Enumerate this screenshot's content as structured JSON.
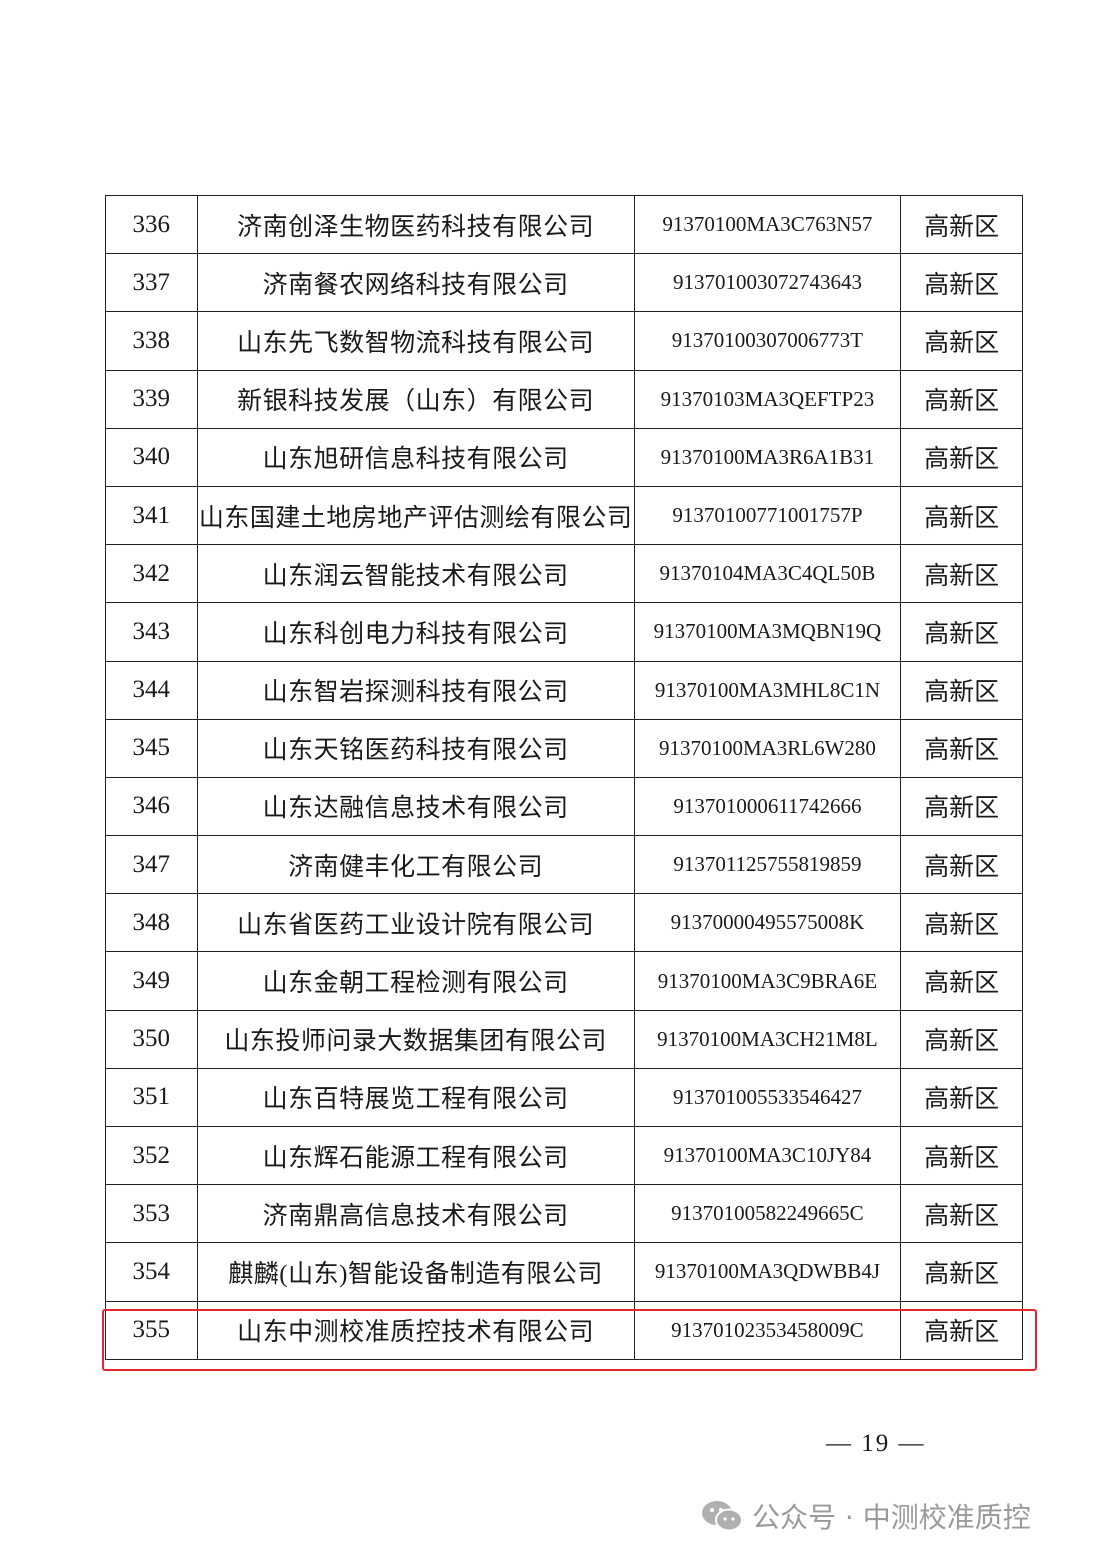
{
  "table": {
    "rows": [
      {
        "no": "336",
        "name": "济南创泽生物医药科技有限公司",
        "code": "91370100MA3C763N57",
        "area": "高新区"
      },
      {
        "no": "337",
        "name": "济南餐农网络科技有限公司",
        "code": "913701003072743643",
        "area": "高新区"
      },
      {
        "no": "338",
        "name": "山东先飞数智物流科技有限公司",
        "code": "91370100307006773T",
        "area": "高新区"
      },
      {
        "no": "339",
        "name": "新银科技发展（山东）有限公司",
        "code": "91370103MA3QEFTP23",
        "area": "高新区"
      },
      {
        "no": "340",
        "name": "山东旭研信息科技有限公司",
        "code": "91370100MA3R6A1B31",
        "area": "高新区"
      },
      {
        "no": "341",
        "name": "山东国建土地房地产评估测绘有限公司",
        "code": "91370100771001757P",
        "area": "高新区"
      },
      {
        "no": "342",
        "name": "山东润云智能技术有限公司",
        "code": "91370104MA3C4QL50B",
        "area": "高新区"
      },
      {
        "no": "343",
        "name": "山东科创电力科技有限公司",
        "code": "91370100MA3MQBN19Q",
        "area": "高新区"
      },
      {
        "no": "344",
        "name": "山东智岩探测科技有限公司",
        "code": "91370100MA3MHL8C1N",
        "area": "高新区"
      },
      {
        "no": "345",
        "name": "山东天铭医药科技有限公司",
        "code": "91370100MA3RL6W280",
        "area": "高新区"
      },
      {
        "no": "346",
        "name": "山东达融信息技术有限公司",
        "code": "913701000611742666",
        "area": "高新区"
      },
      {
        "no": "347",
        "name": "济南健丰化工有限公司",
        "code": "913701125755819859",
        "area": "高新区"
      },
      {
        "no": "348",
        "name": "山东省医药工业设计院有限公司",
        "code": "91370000495575008K",
        "area": "高新区"
      },
      {
        "no": "349",
        "name": "山东金朝工程检测有限公司",
        "code": "91370100MA3C9BRA6E",
        "area": "高新区"
      },
      {
        "no": "350",
        "name": "山东投师问录大数据集团有限公司",
        "code": "91370100MA3CH21M8L",
        "area": "高新区"
      },
      {
        "no": "351",
        "name": "山东百特展览工程有限公司",
        "code": "913701005533546427",
        "area": "高新区"
      },
      {
        "no": "352",
        "name": "山东辉石能源工程有限公司",
        "code": "91370100MA3C10JY84",
        "area": "高新区"
      },
      {
        "no": "353",
        "name": "济南鼎高信息技术有限公司",
        "code": "91370100582249665C",
        "area": "高新区"
      },
      {
        "no": "354",
        "name": "麒麟(山东)智能设备制造有限公司",
        "code": "91370100MA3QDWBB4J",
        "area": "高新区"
      },
      {
        "no": "355",
        "name": "山东中测校准质控技术有限公司",
        "code": "91370102353458009C",
        "area": "高新区"
      }
    ],
    "highlighted_row": "355",
    "highlight_color": "#e8262b"
  },
  "page_number": "— 19 —",
  "watermark": {
    "icon": "wechat-icon",
    "text": "公众号 · 中测校准质控"
  }
}
